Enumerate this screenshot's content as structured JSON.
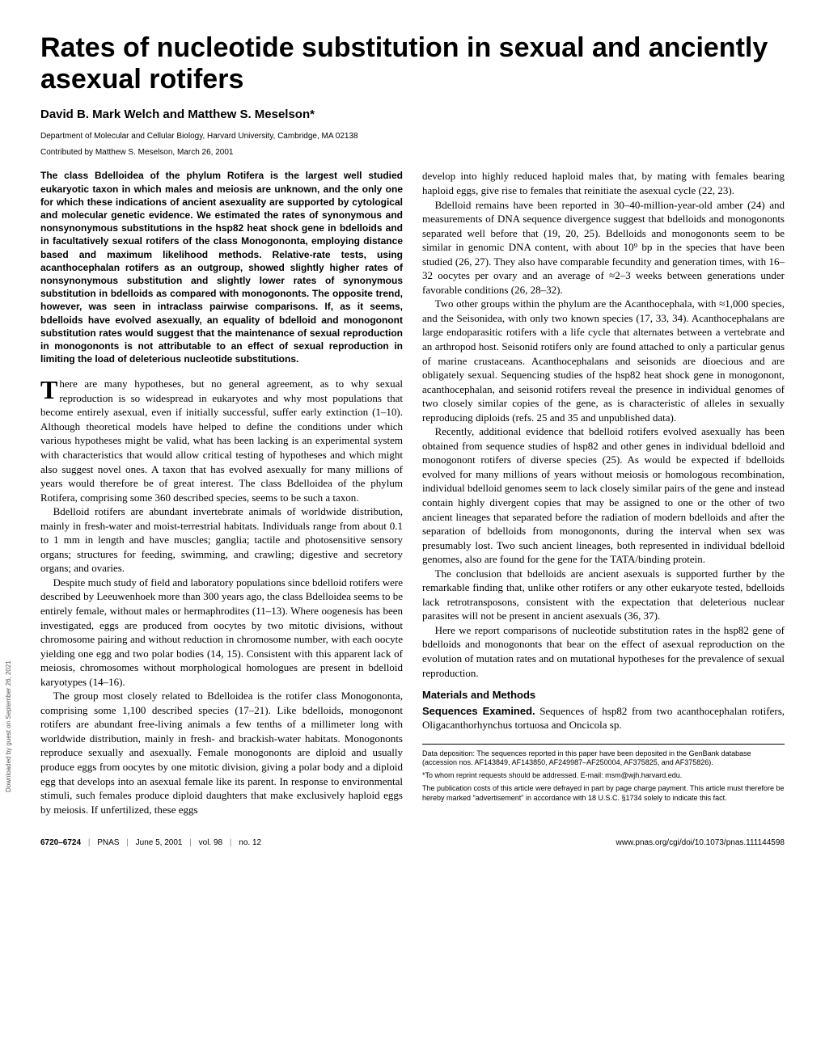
{
  "title": "Rates of nucleotide substitution in sexual and anciently asexual rotifers",
  "authors": "David B. Mark Welch and Matthew S. Meselson*",
  "affiliation": "Department of Molecular and Cellular Biology, Harvard University, Cambridge, MA 02138",
  "contributed": "Contributed by Matthew S. Meselson, March 26, 2001",
  "abstract": "The class Bdelloidea of the phylum Rotifera is the largest well studied eukaryotic taxon in which males and meiosis are unknown, and the only one for which these indications of ancient asexuality are supported by cytological and molecular genetic evidence. We estimated the rates of synonymous and nonsynonymous substitutions in the hsp82 heat shock gene in bdelloids and in facultatively sexual rotifers of the class Monogononta, employing distance based and maximum likelihood methods. Relative-rate tests, using acanthocephalan rotifers as an outgroup, showed slightly higher rates of nonsynonymous substitution and slightly lower rates of synonymous substitution in bdelloids as compared with monogononts. The opposite trend, however, was seen in intraclass pairwise comparisons. If, as it seems, bdelloids have evolved asexually, an equality of bdelloid and monogonont substitution rates would suggest that the maintenance of sexual reproduction in monogononts is not attributable to an effect of sexual reproduction in limiting the load of deleterious nucleotide substitutions.",
  "left": {
    "p1_first": "T",
    "p1": "here are many hypotheses, but no general agreement, as to why sexual reproduction is so widespread in eukaryotes and why most populations that become entirely asexual, even if initially successful, suffer early extinction (1–10). Although theoretical models have helped to define the conditions under which various hypotheses might be valid, what has been lacking is an experimental system with characteristics that would allow critical testing of hypotheses and which might also suggest novel ones. A taxon that has evolved asexually for many millions of years would therefore be of great interest. The class Bdelloidea of the phylum Rotifera, comprising some 360 described species, seems to be such a taxon.",
    "p2": "Bdelloid rotifers are abundant invertebrate animals of worldwide distribution, mainly in fresh-water and moist-terrestrial habitats. Individuals range from about 0.1 to 1 mm in length and have muscles; ganglia; tactile and photosensitive sensory organs; structures for feeding, swimming, and crawling; digestive and secretory organs; and ovaries.",
    "p3": "Despite much study of field and laboratory populations since bdelloid rotifers were described by Leeuwenhoek more than 300 years ago, the class Bdelloidea seems to be entirely female, without males or hermaphrodites (11–13). Where oogenesis has been investigated, eggs are produced from oocytes by two mitotic divisions, without chromosome pairing and without reduction in chromosome number, with each oocyte yielding one egg and two polar bodies (14, 15). Consistent with this apparent lack of meiosis, chromosomes without morphological homologues are present in bdelloid karyotypes (14–16).",
    "p4": "The group most closely related to Bdelloidea is the rotifer class Monogononta, comprising some 1,100 described species (17–21). Like bdelloids, monogonont rotifers are abundant free-living animals a few tenths of a millimeter long with worldwide distribution, mainly in fresh- and brackish-water habitats. Monogononts reproduce sexually and asexually. Female monogononts are diploid and usually produce eggs from oocytes by one mitotic division, giving a polar body and a diploid egg that develops into an asexual female like its parent. In response to environmental stimuli, such females produce diploid daughters that make exclusively haploid eggs by meiosis. If unfertilized, these eggs"
  },
  "right": {
    "p1": "develop into highly reduced haploid males that, by mating with females bearing haploid eggs, give rise to females that reinitiate the asexual cycle (22, 23).",
    "p2": "Bdelloid remains have been reported in 30–40-million-year-old amber (24) and measurements of DNA sequence divergence suggest that bdelloids and monogononts separated well before that (19, 20, 25). Bdelloids and monogononts seem to be similar in genomic DNA content, with about 10⁹ bp in the species that have been studied (26, 27). They also have comparable fecundity and generation times, with 16–32 oocytes per ovary and an average of ≈2–3 weeks between generations under favorable conditions (26, 28–32).",
    "p3": "Two other groups within the phylum are the Acanthocephala, with ≈1,000 species, and the Seisonidea, with only two known species (17, 33, 34). Acanthocephalans are large endoparasitic rotifers with a life cycle that alternates between a vertebrate and an arthropod host. Seisonid rotifers only are found attached to only a particular genus of marine crustaceans. Acanthocephalans and seisonids are dioecious and are obligately sexual. Sequencing studies of the hsp82 heat shock gene in monogonont, acanthocephalan, and seisonid rotifers reveal the presence in individual genomes of two closely similar copies of the gene, as is characteristic of alleles in sexually reproducing diploids (refs. 25 and 35 and unpublished data).",
    "p4": "Recently, additional evidence that bdelloid rotifers evolved asexually has been obtained from sequence studies of hsp82 and other genes in individual bdelloid and monogonont rotifers of diverse species (25). As would be expected if bdelloids evolved for many millions of years without meiosis or homologous recombination, individual bdelloid genomes seem to lack closely similar pairs of the gene and instead contain highly divergent copies that may be assigned to one or the other of two ancient lineages that separated before the radiation of modern bdelloids and after the separation of bdelloids from monogononts, during the interval when sex was presumably lost. Two such ancient lineages, both represented in individual bdelloid genomes, also are found for the gene for the TATA/binding protein.",
    "p5": "The conclusion that bdelloids are ancient asexuals is supported further by the remarkable finding that, unlike other rotifers or any other eukaryote tested, bdelloids lack retrotransposons, consistent with the expectation that deleterious nuclear parasites will not be present in ancient asexuals (36, 37).",
    "p6": "Here we report comparisons of nucleotide substitution rates in the hsp82 gene of bdelloids and monogononts that bear on the effect of asexual reproduction on the evolution of mutation rates and on mutational hypotheses for the prevalence of sexual reproduction."
  },
  "section_head": "Materials and Methods",
  "methods_runin": "Sequences Examined.",
  "methods_body": " Sequences of hsp82 from two acanthocephalan rotifers, Oligacanthorhynchus tortuosa and Oncicola sp.",
  "footnotes": {
    "f1": "Data deposition: The sequences reported in this paper have been deposited in the GenBank database (accession nos. AF143849, AF143850, AF249987–AF250004, AF375825, and AF375826).",
    "f2": "*To whom reprint requests should be addressed. E-mail: msm@wjh.harvard.edu.",
    "f3": "The publication costs of this article were defrayed in part by page charge payment. This article must therefore be hereby marked \"advertisement\" in accordance with 18 U.S.C. §1734 solely to indicate this fact."
  },
  "footer": {
    "left_pages": "6720–6724",
    "left_pnas": "PNAS",
    "left_date": "June 5, 2001",
    "left_vol": "vol. 98",
    "left_no": "no. 12",
    "right": "www.pnas.org/cgi/doi/10.1073/pnas.111144598"
  },
  "sidebar": "Downloaded by guest on September 26, 2021",
  "colors": {
    "text": "#000000",
    "bg": "#ffffff",
    "divider": "#888888"
  },
  "fonts": {
    "serif": "Times",
    "sans": "Arial",
    "title_size": 34,
    "body_size": 13,
    "abstract_size": 12,
    "footnote_size": 9,
    "footer_size": 10
  }
}
